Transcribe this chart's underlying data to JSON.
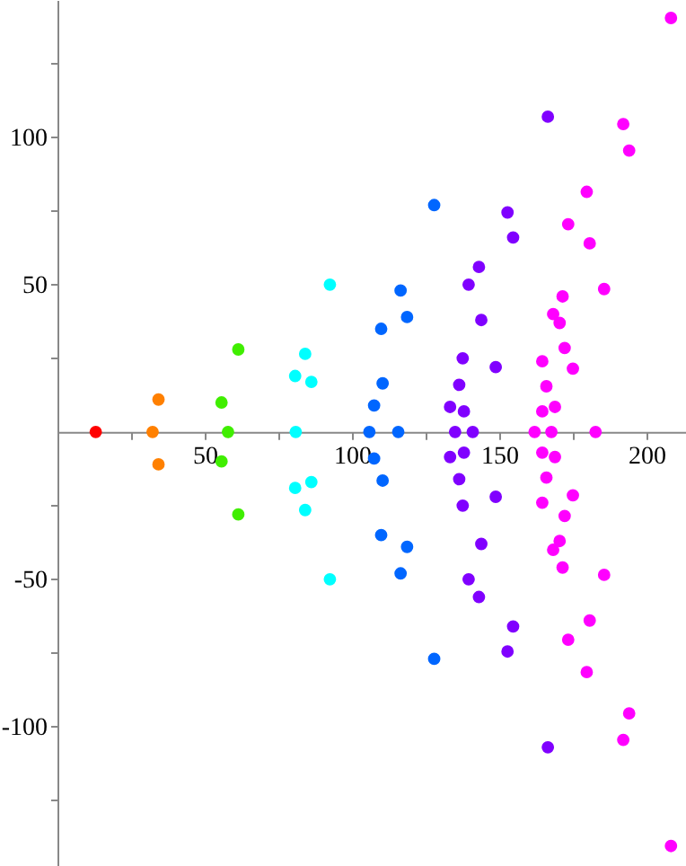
{
  "chart_data": {
    "type": "scatter",
    "marker": "circle",
    "xlim": [
      0,
      213.4
    ],
    "ylim": [
      -147.3,
      146.6
    ],
    "xticks": [
      {
        "value": 25,
        "label": null
      },
      50,
      {
        "value": 75,
        "label": null
      },
      100,
      {
        "value": 125,
        "label": null
      },
      150,
      {
        "value": 175,
        "label": null
      },
      200
    ],
    "yticks": [
      {
        "value": -125,
        "label": null
      },
      -100,
      {
        "value": -75,
        "label": null
      },
      -50,
      {
        "value": -25,
        "label": null
      },
      {
        "value": 25,
        "label": null
      },
      50,
      {
        "value": 75,
        "label": null
      },
      100,
      {
        "value": 125,
        "label": null
      }
    ],
    "series": [
      {
        "color": "#ff0000",
        "x": [
          13
        ],
        "values": [
          0
        ]
      },
      {
        "color": "#ff8000",
        "x": [
          32.3,
          34.3,
          34.3
        ],
        "values": [
          0,
          11,
          -11
        ]
      },
      {
        "color": "#40ee00",
        "x": [
          57.9,
          55.7,
          55.7,
          61.4,
          61.4
        ],
        "values": [
          0,
          10,
          -10,
          28,
          -28
        ]
      },
      {
        "color": "#00ffff",
        "x": [
          80.9,
          80.7,
          80.7,
          84.1,
          84.1,
          86.2,
          86.2,
          92.5,
          92.5
        ],
        "values": [
          0,
          19,
          -19,
          26.5,
          -26.5,
          17,
          -17,
          50,
          -50
        ]
      },
      {
        "color": "#0066ff",
        "x": [
          105.9,
          115.7,
          107.5,
          107.5,
          110.4,
          110.4,
          109.9,
          109.9,
          118.7,
          118.7,
          116.5,
          116.5,
          127.9,
          127.9
        ],
        "values": [
          0,
          0,
          9,
          -9,
          16.5,
          -16.5,
          35,
          -35,
          39,
          -39,
          48,
          -48,
          77,
          -77
        ]
      },
      {
        "color": "#8000ff",
        "x": [
          135,
          141,
          133.3,
          133.3,
          138,
          138,
          136.4,
          136.4,
          137.6,
          137.6,
          148.8,
          148.8,
          143.9,
          143.9,
          139.6,
          139.6,
          143.1,
          143.1,
          154.7,
          154.7,
          152.8,
          152.8,
          166.5,
          166.5
        ],
        "values": [
          0,
          0,
          8.5,
          -8.5,
          7,
          -7,
          16,
          -16,
          25,
          -25,
          22,
          -22,
          38,
          -38,
          50,
          -50,
          56,
          -56,
          66,
          -66,
          74.5,
          -74.5,
          107,
          -107
        ]
      },
      {
        "color": "#ff00ff",
        "x": [
          162,
          167.7,
          182.7,
          164.6,
          164.6,
          168.9,
          168.9,
          166,
          166,
          164.6,
          164.6,
          175,
          175,
          172.2,
          172.2,
          168.3,
          168.3,
          170.5,
          170.5,
          171.5,
          171.5,
          185.6,
          185.6,
          180.7,
          180.7,
          173.4,
          173.4,
          179.7,
          179.7,
          194.1,
          194.1,
          192.1,
          192.1,
          208.3,
          208.3
        ],
        "values": [
          0,
          0,
          0,
          7,
          -7,
          8.5,
          -8.5,
          15.5,
          -15.5,
          24,
          -24,
          21.5,
          -21.5,
          28.5,
          -28.5,
          40,
          -40,
          37,
          -37,
          46,
          -46,
          48.5,
          -48.5,
          64,
          -64,
          70.5,
          -70.5,
          81.5,
          -81.5,
          95.5,
          -95.5,
          104.5,
          -104.5,
          140.5,
          -140.5
        ]
      }
    ]
  }
}
